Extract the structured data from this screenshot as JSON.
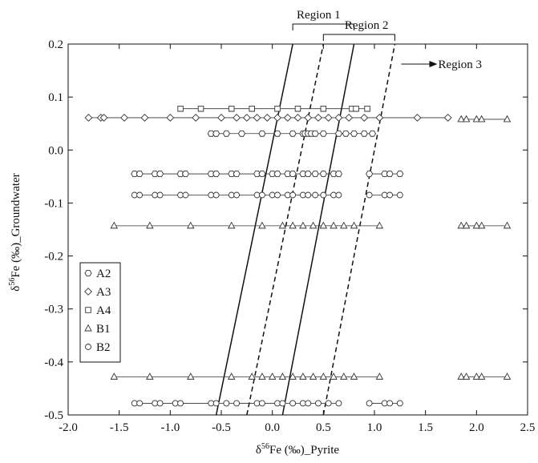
{
  "chart_data": {
    "type": "scatter",
    "x_label": {
      "prefix": "δ",
      "sup": "56",
      "suffix": "Fe (‰)_Pyrite"
    },
    "y_label": {
      "prefix": "δ",
      "sup": "56",
      "suffix": "Fe (‰)_Groundwater"
    },
    "xlim": [
      -2.0,
      2.5
    ],
    "ylim": [
      -0.5,
      0.2
    ],
    "xticks": [
      {
        "value": -2.0,
        "label": "-2.0"
      },
      -1.5,
      {
        "value": -1.0,
        "label": "-1.0"
      },
      -0.5,
      {
        "value": 0,
        "label": "0.0"
      },
      0.5,
      {
        "value": 1.0,
        "label": "1.0"
      },
      1.5,
      {
        "value": 2.0,
        "label": "2.0"
      },
      2.5
    ],
    "yticks": [
      0.2,
      0.1,
      {
        "value": 0,
        "label": "0.0"
      },
      -0.1,
      -0.2,
      -0.3,
      -0.4,
      -0.5
    ],
    "legend": "lower left",
    "series": [
      {
        "name": "A2",
        "marker": "hexagon",
        "color": "#333333",
        "x": [
          -0.6,
          -0.55,
          -0.45,
          -0.3,
          -0.1,
          0.05,
          0.2,
          0.3,
          0.32,
          0.35,
          0.38,
          0.42,
          0.5,
          0.65,
          0.72,
          0.8,
          0.9,
          0.98,
          null,
          -1.35,
          -1.3,
          -1.15,
          -1.1,
          -0.9,
          -0.85,
          -0.6,
          -0.55,
          -0.4,
          -0.35,
          -0.15,
          -0.1,
          0.0,
          0.05,
          0.15,
          0.2,
          0.3,
          0.35,
          0.42,
          0.5,
          0.6,
          0.65,
          null,
          0.95,
          1.1,
          1.15,
          1.25
        ],
        "values": [
          0.031,
          0.031,
          0.031,
          0.031,
          0.031,
          0.031,
          0.031,
          0.031,
          0.031,
          0.031,
          0.031,
          0.031,
          0.031,
          0.031,
          0.031,
          0.031,
          0.031,
          0.031,
          null,
          -0.045,
          -0.045,
          -0.045,
          -0.045,
          -0.045,
          -0.045,
          -0.045,
          -0.045,
          -0.045,
          -0.045,
          -0.045,
          -0.045,
          -0.045,
          -0.045,
          -0.045,
          -0.045,
          -0.045,
          -0.045,
          -0.045,
          -0.045,
          -0.045,
          -0.045,
          null,
          -0.045,
          -0.045,
          -0.045,
          -0.045
        ]
      },
      {
        "name": "A3",
        "marker": "diamond",
        "color": "#333333",
        "x": [
          -1.8,
          -1.68,
          -1.65,
          -1.45,
          -1.25,
          -1.0,
          -0.75,
          -0.5,
          -0.35,
          -0.25,
          -0.15,
          -0.05,
          0.05,
          0.15,
          0.25,
          0.35,
          0.45,
          0.55,
          0.65,
          0.75,
          0.9,
          1.05,
          1.42,
          1.72
        ],
        "values": [
          0.061,
          0.061,
          0.061,
          0.061,
          0.061,
          0.061,
          0.061,
          0.061,
          0.061,
          0.061,
          0.061,
          0.061,
          0.061,
          0.061,
          0.061,
          0.061,
          0.061,
          0.061,
          0.061,
          0.061,
          0.061,
          0.061,
          0.061,
          0.061
        ]
      },
      {
        "name": "A4",
        "marker": "square",
        "color": "#333333",
        "x": [
          -0.9,
          -0.7,
          -0.4,
          -0.2,
          0.05,
          0.25,
          0.5,
          0.78,
          0.82,
          0.93
        ],
        "values": [
          0.078,
          0.078,
          0.078,
          0.078,
          0.078,
          0.078,
          0.078,
          0.078,
          0.078,
          0.078
        ]
      },
      {
        "name": "B1",
        "marker": "triangle",
        "color": "#333333",
        "x": [
          1.85,
          1.9,
          2.0,
          2.05,
          2.3,
          null,
          -1.55,
          -1.2,
          -0.8,
          -0.4,
          -0.1,
          0.1,
          0.2,
          0.3,
          0.4,
          0.5,
          0.6,
          0.7,
          0.8,
          1.05,
          null,
          1.85,
          1.9,
          2.0,
          2.05,
          2.3,
          null,
          -1.55,
          -1.2,
          -0.8,
          -0.4,
          -0.2,
          -0.1,
          0.0,
          0.1,
          0.2,
          0.3,
          0.4,
          0.5,
          0.6,
          0.7,
          0.8,
          1.05,
          null,
          1.85,
          1.9,
          2.0,
          2.05,
          2.3
        ],
        "values": [
          0.058,
          0.058,
          0.058,
          0.058,
          0.058,
          null,
          -0.143,
          -0.143,
          -0.143,
          -0.143,
          -0.143,
          -0.143,
          -0.143,
          -0.143,
          -0.143,
          -0.143,
          -0.143,
          -0.143,
          -0.143,
          -0.143,
          null,
          -0.143,
          -0.143,
          -0.143,
          -0.143,
          -0.143,
          null,
          -0.428,
          -0.428,
          -0.428,
          -0.428,
          -0.428,
          -0.428,
          -0.428,
          -0.428,
          -0.428,
          -0.428,
          -0.428,
          -0.428,
          -0.428,
          -0.428,
          -0.428,
          -0.428,
          null,
          -0.428,
          -0.428,
          -0.428,
          -0.428,
          -0.428
        ]
      },
      {
        "name": "B2",
        "marker": "circle",
        "color": "#333333",
        "x": [
          -1.35,
          -1.3,
          -1.15,
          -1.1,
          -0.9,
          -0.85,
          -0.6,
          -0.55,
          -0.4,
          -0.35,
          -0.15,
          -0.1,
          0.0,
          0.05,
          0.15,
          0.2,
          0.3,
          0.35,
          0.42,
          0.5,
          0.6,
          0.65,
          null,
          0.95,
          1.1,
          1.15,
          1.25,
          null,
          -1.35,
          -1.3,
          -1.15,
          -1.1,
          -0.95,
          -0.9,
          -0.6,
          -0.55,
          -0.45,
          -0.35,
          -0.15,
          -0.1,
          0.05,
          0.1,
          0.2,
          0.3,
          0.35,
          0.45,
          0.55,
          0.65,
          null,
          0.95,
          1.1,
          1.15,
          1.25
        ],
        "values": [
          -0.085,
          -0.085,
          -0.085,
          -0.085,
          -0.085,
          -0.085,
          -0.085,
          -0.085,
          -0.085,
          -0.085,
          -0.085,
          -0.085,
          -0.085,
          -0.085,
          -0.085,
          -0.085,
          -0.085,
          -0.085,
          -0.085,
          -0.085,
          -0.085,
          -0.085,
          null,
          -0.085,
          -0.085,
          -0.085,
          -0.085,
          null,
          -0.478,
          -0.478,
          -0.478,
          -0.478,
          -0.478,
          -0.478,
          -0.478,
          -0.478,
          -0.478,
          -0.478,
          -0.478,
          -0.478,
          -0.478,
          -0.478,
          -0.478,
          -0.478,
          -0.478,
          -0.478,
          -0.478,
          -0.478,
          null,
          -0.478,
          -0.478,
          -0.478,
          -0.478
        ]
      }
    ],
    "boundary_lines": [
      {
        "style": "solid",
        "x": [
          -0.55,
          0.2
        ],
        "y": [
          -0.5,
          0.2
        ]
      },
      {
        "style": "dashed",
        "x": [
          -0.25,
          0.5
        ],
        "y": [
          -0.5,
          0.2
        ]
      },
      {
        "style": "solid",
        "x": [
          0.1,
          0.8
        ],
        "y": [
          -0.5,
          0.2
        ]
      },
      {
        "style": "dashed",
        "x": [
          0.5,
          1.2
        ],
        "y": [
          -0.5,
          0.2
        ]
      }
    ],
    "annotations": [
      {
        "text": "Region 1",
        "x_range": [
          0.2,
          0.8
        ]
      },
      {
        "text": "Region 2",
        "x_range": [
          0.5,
          1.2
        ]
      },
      {
        "text": "Region 3",
        "x_from": 1.2
      }
    ]
  }
}
